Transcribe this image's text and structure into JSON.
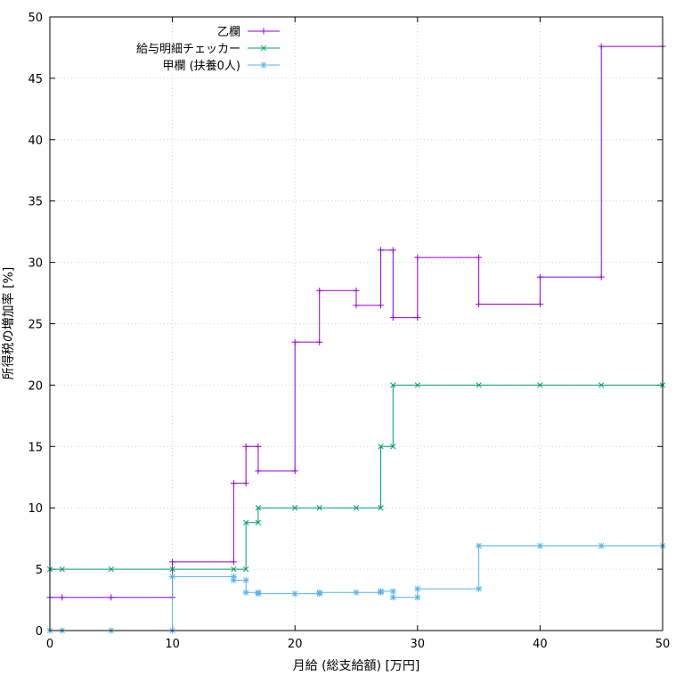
{
  "chart_data": {
    "type": "line",
    "step": true,
    "xlabel": "月給 (総支給額) [万円]",
    "ylabel": "所得税の増加率 [%]",
    "xlim": [
      0,
      50
    ],
    "ylim": [
      0,
      50
    ],
    "xticks": [
      0,
      10,
      20,
      30,
      40,
      50
    ],
    "yticks": [
      0,
      5,
      10,
      15,
      20,
      25,
      30,
      35,
      40,
      45,
      50
    ],
    "grid": true,
    "legend_position": "top-left",
    "series": [
      {
        "name": "乙欄",
        "color": "#9400d3",
        "marker": "plus",
        "points": [
          [
            0,
            2.7
          ],
          [
            1,
            2.7
          ],
          [
            5,
            2.7
          ],
          [
            10,
            5.6
          ],
          [
            15,
            12.0
          ],
          [
            16,
            15.0
          ],
          [
            17,
            13.0
          ],
          [
            20,
            23.5
          ],
          [
            22,
            27.7
          ],
          [
            25,
            26.5
          ],
          [
            27,
            31.0
          ],
          [
            28,
            25.5
          ],
          [
            30,
            30.4
          ],
          [
            35,
            26.6
          ],
          [
            40,
            28.8
          ],
          [
            45,
            47.6
          ],
          [
            50,
            47.6
          ]
        ]
      },
      {
        "name": "給与明細チェッカー",
        "color": "#009e73",
        "marker": "cross",
        "points": [
          [
            0,
            5.0
          ],
          [
            1,
            5.0
          ],
          [
            5,
            5.0
          ],
          [
            10,
            5.0
          ],
          [
            15,
            5.0
          ],
          [
            16,
            8.8
          ],
          [
            17,
            10.0
          ],
          [
            20,
            10.0
          ],
          [
            22,
            10.0
          ],
          [
            25,
            10.0
          ],
          [
            27,
            15.0
          ],
          [
            28,
            20.0
          ],
          [
            30,
            20.0
          ],
          [
            35,
            20.0
          ],
          [
            40,
            20.0
          ],
          [
            45,
            20.0
          ],
          [
            50,
            20.0
          ]
        ]
      },
      {
        "name": "甲欄 (扶養0人)",
        "color": "#56b4e9",
        "marker": "star",
        "points": [
          [
            0,
            0.0
          ],
          [
            1,
            0.0
          ],
          [
            5,
            0.0
          ],
          [
            10,
            4.4
          ],
          [
            15,
            4.1
          ],
          [
            16,
            3.1
          ],
          [
            17,
            3.0
          ],
          [
            20,
            3.0
          ],
          [
            22,
            3.1
          ],
          [
            25,
            3.1
          ],
          [
            27,
            3.2
          ],
          [
            28,
            2.7
          ],
          [
            30,
            3.4
          ],
          [
            35,
            6.9
          ],
          [
            40,
            6.9
          ],
          [
            45,
            6.9
          ],
          [
            50,
            6.9
          ]
        ]
      }
    ]
  }
}
